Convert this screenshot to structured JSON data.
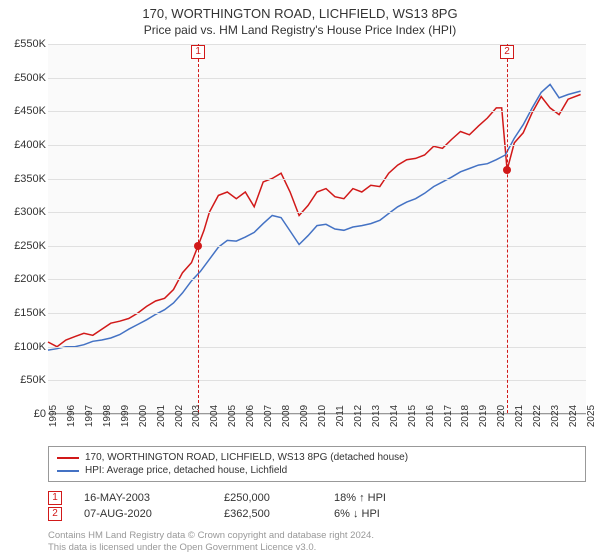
{
  "header": {
    "title": "170, WORTHINGTON ROAD, LICHFIELD, WS13 8PG",
    "subtitle": "Price paid vs. HM Land Registry's House Price Index (HPI)"
  },
  "chart": {
    "type": "line",
    "background_color": "#fafafa",
    "grid_color": "#e0e0e0",
    "axis_color": "#999999",
    "font_color": "#333333",
    "ylim": [
      0,
      550000
    ],
    "ytick_step": 50000,
    "yticks": [
      "£0",
      "£50K",
      "£100K",
      "£150K",
      "£200K",
      "£250K",
      "£300K",
      "£350K",
      "£400K",
      "£450K",
      "£500K",
      "£550K"
    ],
    "x_years": [
      1995,
      1996,
      1997,
      1998,
      1999,
      2000,
      2001,
      2002,
      2003,
      2004,
      2005,
      2006,
      2007,
      2008,
      2009,
      2010,
      2011,
      2012,
      2013,
      2014,
      2015,
      2016,
      2017,
      2018,
      2019,
      2020,
      2021,
      2022,
      2023,
      2024,
      2025
    ],
    "series": [
      {
        "name": "property",
        "label": "170, WORTHINGTON ROAD, LICHFIELD, WS13 8PG (detached house)",
        "color": "#d11919",
        "line_width": 1.5,
        "points": [
          [
            1995.0,
            107000
          ],
          [
            1995.5,
            100000
          ],
          [
            1996.0,
            110000
          ],
          [
            1996.5,
            115000
          ],
          [
            1997.0,
            120000
          ],
          [
            1997.5,
            117000
          ],
          [
            1998.0,
            126000
          ],
          [
            1998.5,
            135000
          ],
          [
            1999.0,
            138000
          ],
          [
            1999.5,
            142000
          ],
          [
            2000.0,
            150000
          ],
          [
            2000.5,
            160000
          ],
          [
            2001.0,
            168000
          ],
          [
            2001.5,
            172000
          ],
          [
            2002.0,
            185000
          ],
          [
            2002.5,
            210000
          ],
          [
            2003.0,
            225000
          ],
          [
            2003.37,
            250000
          ],
          [
            2003.7,
            273000
          ],
          [
            2004.0,
            300000
          ],
          [
            2004.5,
            325000
          ],
          [
            2005.0,
            330000
          ],
          [
            2005.5,
            320000
          ],
          [
            2006.0,
            330000
          ],
          [
            2006.5,
            308000
          ],
          [
            2007.0,
            345000
          ],
          [
            2007.5,
            350000
          ],
          [
            2008.0,
            358000
          ],
          [
            2008.5,
            330000
          ],
          [
            2009.0,
            295000
          ],
          [
            2009.5,
            310000
          ],
          [
            2010.0,
            330000
          ],
          [
            2010.5,
            335000
          ],
          [
            2011.0,
            323000
          ],
          [
            2011.5,
            320000
          ],
          [
            2012.0,
            335000
          ],
          [
            2012.5,
            330000
          ],
          [
            2013.0,
            340000
          ],
          [
            2013.5,
            338000
          ],
          [
            2014.0,
            358000
          ],
          [
            2014.5,
            370000
          ],
          [
            2015.0,
            378000
          ],
          [
            2015.5,
            380000
          ],
          [
            2016.0,
            385000
          ],
          [
            2016.5,
            398000
          ],
          [
            2017.0,
            395000
          ],
          [
            2017.5,
            408000
          ],
          [
            2018.0,
            420000
          ],
          [
            2018.5,
            415000
          ],
          [
            2019.0,
            428000
          ],
          [
            2019.5,
            440000
          ],
          [
            2020.0,
            455000
          ],
          [
            2020.3,
            455000
          ],
          [
            2020.6,
            362500
          ],
          [
            2021.0,
            403000
          ],
          [
            2021.5,
            418000
          ],
          [
            2022.0,
            448000
          ],
          [
            2022.5,
            472000
          ],
          [
            2023.0,
            455000
          ],
          [
            2023.5,
            445000
          ],
          [
            2024.0,
            468000
          ],
          [
            2024.7,
            475000
          ]
        ]
      },
      {
        "name": "hpi",
        "label": "HPI: Average price, detached house, Lichfield",
        "color": "#4472c4",
        "line_width": 1.5,
        "points": [
          [
            1995.0,
            95000
          ],
          [
            1995.5,
            97000
          ],
          [
            1996.0,
            100000
          ],
          [
            1996.5,
            100000
          ],
          [
            1997.0,
            103000
          ],
          [
            1997.5,
            108000
          ],
          [
            1998.0,
            110000
          ],
          [
            1998.5,
            113000
          ],
          [
            1999.0,
            118000
          ],
          [
            1999.5,
            126000
          ],
          [
            2000.0,
            133000
          ],
          [
            2000.5,
            140000
          ],
          [
            2001.0,
            148000
          ],
          [
            2001.5,
            155000
          ],
          [
            2002.0,
            165000
          ],
          [
            2002.5,
            180000
          ],
          [
            2003.0,
            198000
          ],
          [
            2003.5,
            212000
          ],
          [
            2004.0,
            230000
          ],
          [
            2004.5,
            248000
          ],
          [
            2005.0,
            258000
          ],
          [
            2005.5,
            257000
          ],
          [
            2006.0,
            263000
          ],
          [
            2006.5,
            270000
          ],
          [
            2007.0,
            283000
          ],
          [
            2007.5,
            295000
          ],
          [
            2008.0,
            292000
          ],
          [
            2008.5,
            272000
          ],
          [
            2009.0,
            252000
          ],
          [
            2009.5,
            265000
          ],
          [
            2010.0,
            280000
          ],
          [
            2010.5,
            282000
          ],
          [
            2011.0,
            275000
          ],
          [
            2011.5,
            273000
          ],
          [
            2012.0,
            278000
          ],
          [
            2012.5,
            280000
          ],
          [
            2013.0,
            283000
          ],
          [
            2013.5,
            288000
          ],
          [
            2014.0,
            298000
          ],
          [
            2014.5,
            308000
          ],
          [
            2015.0,
            315000
          ],
          [
            2015.5,
            320000
          ],
          [
            2016.0,
            328000
          ],
          [
            2016.5,
            338000
          ],
          [
            2017.0,
            345000
          ],
          [
            2017.5,
            352000
          ],
          [
            2018.0,
            360000
          ],
          [
            2018.5,
            365000
          ],
          [
            2019.0,
            370000
          ],
          [
            2019.5,
            372000
          ],
          [
            2020.0,
            378000
          ],
          [
            2020.5,
            385000
          ],
          [
            2021.0,
            410000
          ],
          [
            2021.5,
            430000
          ],
          [
            2022.0,
            455000
          ],
          [
            2022.5,
            478000
          ],
          [
            2023.0,
            490000
          ],
          [
            2023.5,
            470000
          ],
          [
            2024.0,
            475000
          ],
          [
            2024.7,
            480000
          ]
        ]
      }
    ],
    "markers": [
      {
        "id": "1",
        "color": "#d11919",
        "year": 2003.37,
        "price": 250000,
        "label_year": 2003.4,
        "label_at_top": true
      },
      {
        "id": "2",
        "color": "#d11919",
        "year": 2020.6,
        "price": 362500,
        "label_year": 2020.6,
        "label_at_top": true
      }
    ]
  },
  "legend": {
    "border_color": "#999999"
  },
  "transactions": [
    {
      "marker": "1",
      "color": "#d11919",
      "date": "16-MAY-2003",
      "price": "£250,000",
      "delta": "18% ↑ HPI"
    },
    {
      "marker": "2",
      "color": "#d11919",
      "date": "07-AUG-2020",
      "price": "£362,500",
      "delta": "6% ↓ HPI"
    }
  ],
  "footer": {
    "line1": "Contains HM Land Registry data © Crown copyright and database right 2024.",
    "line2": "This data is licensed under the Open Government Licence v3.0."
  }
}
